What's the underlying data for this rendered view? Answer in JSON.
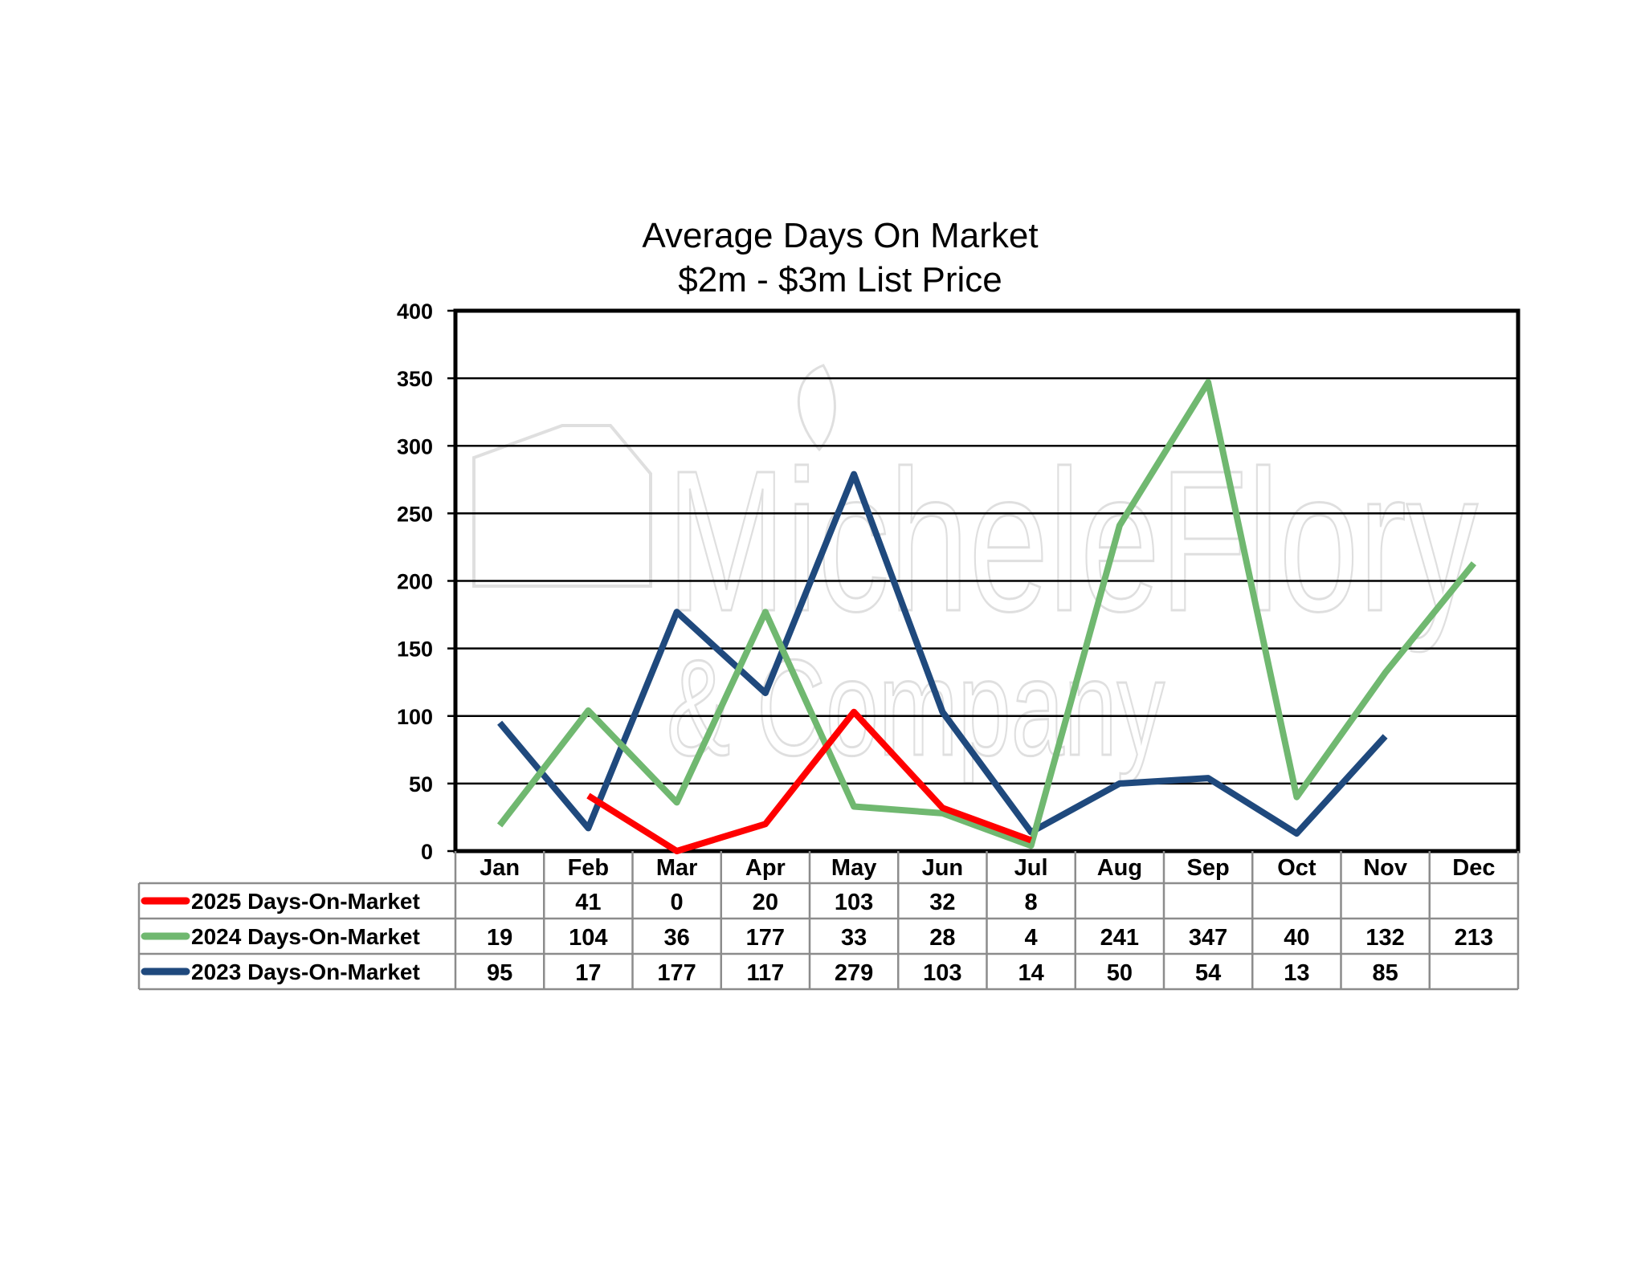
{
  "chart_data": {
    "type": "line",
    "title": "Average Days On Market",
    "subtitle": "$2m - $3m List Price",
    "xlabel": "",
    "ylabel": "",
    "ylim": [
      0,
      400
    ],
    "yticks": [
      0,
      50,
      100,
      150,
      200,
      250,
      300,
      350,
      400
    ],
    "grid": true,
    "legend": "data-table-below",
    "categories": [
      "Jan",
      "Feb",
      "Mar",
      "Apr",
      "May",
      "Jun",
      "Jul",
      "Aug",
      "Sep",
      "Oct",
      "Nov",
      "Dec"
    ],
    "series": [
      {
        "name": "2025 Days-On-Market",
        "color": "#ff0000",
        "values": [
          null,
          41,
          0,
          20,
          103,
          32,
          8,
          null,
          null,
          null,
          null,
          null
        ]
      },
      {
        "name": "2024 Days-On-Market",
        "color": "#70b870",
        "values": [
          19,
          104,
          36,
          177,
          33,
          28,
          4,
          241,
          347,
          40,
          132,
          213
        ]
      },
      {
        "name": "2023 Days-On-Market",
        "color": "#1f497d",
        "values": [
          95,
          17,
          177,
          117,
          279,
          103,
          14,
          50,
          54,
          13,
          85,
          null
        ]
      }
    ]
  },
  "watermark": {
    "line1": "MicheleFlory",
    "line2": "& Company"
  }
}
